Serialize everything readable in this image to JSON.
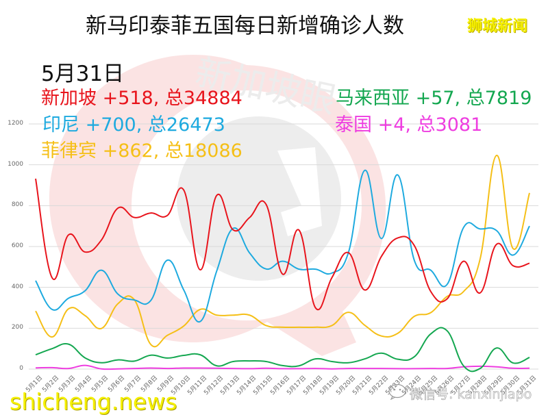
{
  "header": {
    "title": "新马印泰菲五国每日新增确诊人数",
    "brand": "狮城新闻"
  },
  "watermarks": {
    "center_text": "新加坡眼",
    "site": "shicheng.news",
    "wechat": "微信号: kanxinjiapo"
  },
  "legend": {
    "date": "5月31日",
    "entries": [
      {
        "key": "sg",
        "text": "新加坡 +518, 总34884",
        "color": "#e8141c"
      },
      {
        "key": "id",
        "text": "印尼 +700, 总26473",
        "color": "#1eaadf"
      },
      {
        "key": "ph",
        "text": "菲律宾 +862, 总18086",
        "color": "#f5bf17"
      },
      {
        "key": "my",
        "text": "马来西亚 +57, 总7819",
        "color": "#14a750"
      },
      {
        "key": "th",
        "text": "泰国 +4, 总3081",
        "color": "#ee3de0"
      }
    ]
  },
  "chart_data": {
    "type": "line",
    "title": "新马印泰菲五国每日新增确诊人数",
    "xlabel": "",
    "ylabel": "",
    "ylim": [
      0,
      1200
    ],
    "yticks": [
      0,
      200,
      400,
      600,
      800,
      1000,
      1200
    ],
    "grid": true,
    "legend_position": "top-left (as colored text annotations)",
    "smooth": true,
    "categories": [
      "5月1日",
      "5月2日",
      "5月3日",
      "5月4日",
      "5月5日",
      "5月6日",
      "5月7日",
      "5月8日",
      "5月9日",
      "5月10日",
      "5月11日",
      "5月12日",
      "5月13日",
      "5月14日",
      "5月15日",
      "5月16日",
      "5月17日",
      "5月18日",
      "5月19日",
      "5月20日",
      "5月21日",
      "5月22日",
      "5月23日",
      "5月24日",
      "5月25日",
      "5月26日",
      "5月27日",
      "5月28日",
      "5月29日",
      "5月30日",
      "5月31日"
    ],
    "series": [
      {
        "name": "新加坡",
        "color": "#e8141c",
        "values": [
          932,
          447,
          657,
          573,
          632,
          788,
          742,
          764,
          752,
          876,
          486,
          850,
          681,
          742,
          806,
          465,
          680,
          300,
          448,
          570,
          387,
          551,
          642,
          605,
          380,
          344,
          528,
          373,
          611,
          506,
          518
        ]
      },
      {
        "name": "印尼",
        "color": "#1eaadf",
        "values": [
          433,
          292,
          347,
          383,
          484,
          367,
          338,
          336,
          533,
          387,
          233,
          480,
          689,
          568,
          490,
          528,
          489,
          489,
          470,
          570,
          973,
          639,
          950,
          533,
          484,
          415,
          694,
          686,
          678,
          558,
          700
        ]
      },
      {
        "name": "菲律宾",
        "color": "#f5bf17",
        "values": [
          284,
          157,
          295,
          262,
          199,
          320,
          339,
          120,
          165,
          211,
          292,
          264,
          264,
          264,
          213,
          205,
          205,
          205,
          213,
          278,
          214,
          162,
          175,
          258,
          276,
          356,
          380,
          539,
          1046,
          590,
          862
        ]
      },
      {
        "name": "马来西亚",
        "color": "#14a750",
        "values": [
          70,
          100,
          122,
          55,
          31,
          45,
          39,
          68,
          54,
          67,
          70,
          16,
          37,
          40,
          37,
          17,
          16,
          50,
          37,
          31,
          50,
          78,
          48,
          60,
          172,
          187,
          15,
          3,
          103,
          30,
          57
        ]
      },
      {
        "name": "泰国",
        "color": "#ee3de0",
        "values": [
          6,
          7,
          3,
          18,
          1,
          1,
          3,
          5,
          3,
          5,
          5,
          4,
          3,
          2,
          4,
          2,
          2,
          3,
          1,
          3,
          3,
          3,
          2,
          2,
          3,
          3,
          11,
          14,
          11,
          4,
          4
        ]
      }
    ]
  }
}
